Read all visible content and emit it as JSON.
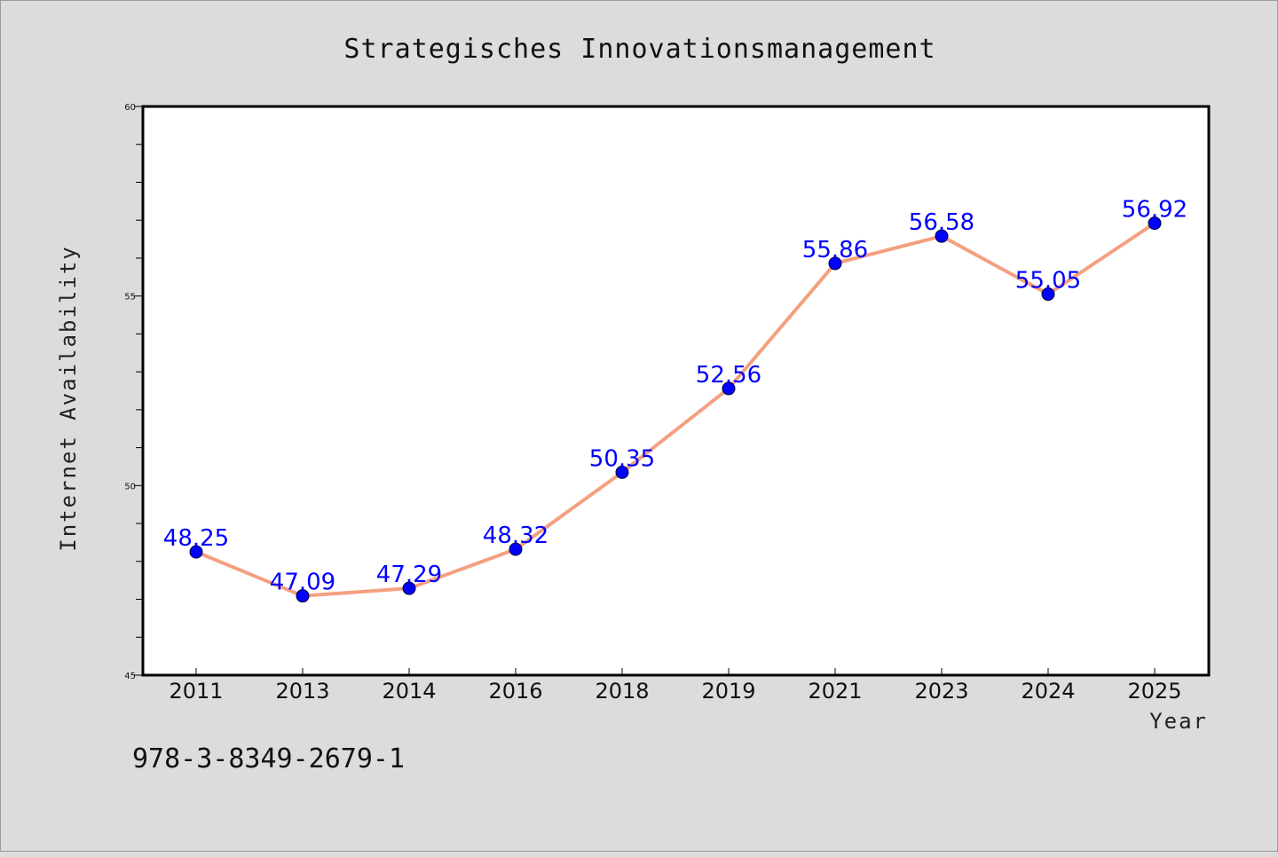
{
  "chart_data": {
    "type": "line",
    "title": "Strategisches Innovationsmanagement",
    "xlabel": "Year",
    "ylabel": "Internet Availability",
    "categories": [
      "2011",
      "2013",
      "2014",
      "2016",
      "2018",
      "2019",
      "2021",
      "2023",
      "2024",
      "2025"
    ],
    "series": [
      {
        "values": [
          48.25,
          47.09,
          47.29,
          48.32,
          50.35,
          52.56,
          55.86,
          56.58,
          55.05,
          56.92
        ],
        "line_color": "#f4a080",
        "marker_color": "#0000ff"
      }
    ],
    "data_labels": [
      "48.25",
      "47.09",
      "47.29",
      "48.32",
      "50.35",
      "52.56",
      "55.86",
      "56.58",
      "55.05",
      "56.92"
    ],
    "ylim": [
      45,
      60
    ],
    "y_ticks": [
      "45",
      "50",
      "55",
      "60"
    ],
    "grid": false,
    "legend": "none"
  },
  "footer": {
    "isbn": "978-3-8349-2679-1"
  },
  "colors": {
    "background": "#dcdcdc",
    "plot_background": "#ffffff",
    "line": "#f4a080",
    "marker": "#0000ff",
    "data_label": "#0000ff"
  }
}
